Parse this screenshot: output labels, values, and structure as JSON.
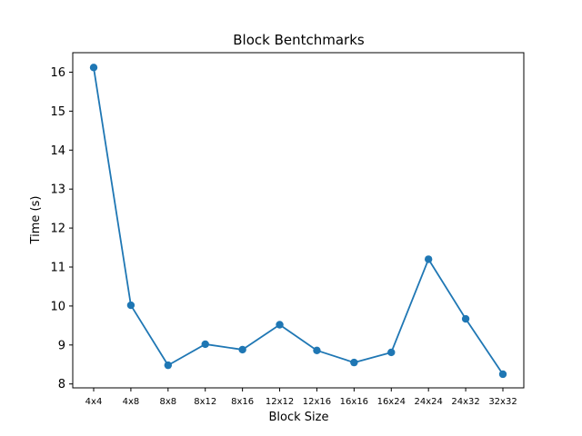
{
  "chart_data": {
    "type": "line",
    "title": "Block Bentchmarks",
    "xlabel": "Block Size",
    "ylabel": "Time (s)",
    "categories": [
      "4x4",
      "4x8",
      "8x8",
      "8x12",
      "8x16",
      "12x12",
      "12x16",
      "16x16",
      "16x24",
      "24x24",
      "24x32",
      "32x32"
    ],
    "series": [
      {
        "values": [
          16.12,
          10.02,
          8.48,
          9.02,
          8.88,
          9.52,
          8.86,
          8.55,
          8.81,
          11.2,
          9.67,
          8.25
        ]
      }
    ],
    "ylim": [
      7.9,
      16.5
    ],
    "yticks": [
      8,
      9,
      10,
      11,
      12,
      13,
      14,
      15,
      16
    ],
    "grid": false,
    "colors": {
      "line": "#1f77b4",
      "marker": "#1f77b4"
    },
    "marker": "circle"
  }
}
